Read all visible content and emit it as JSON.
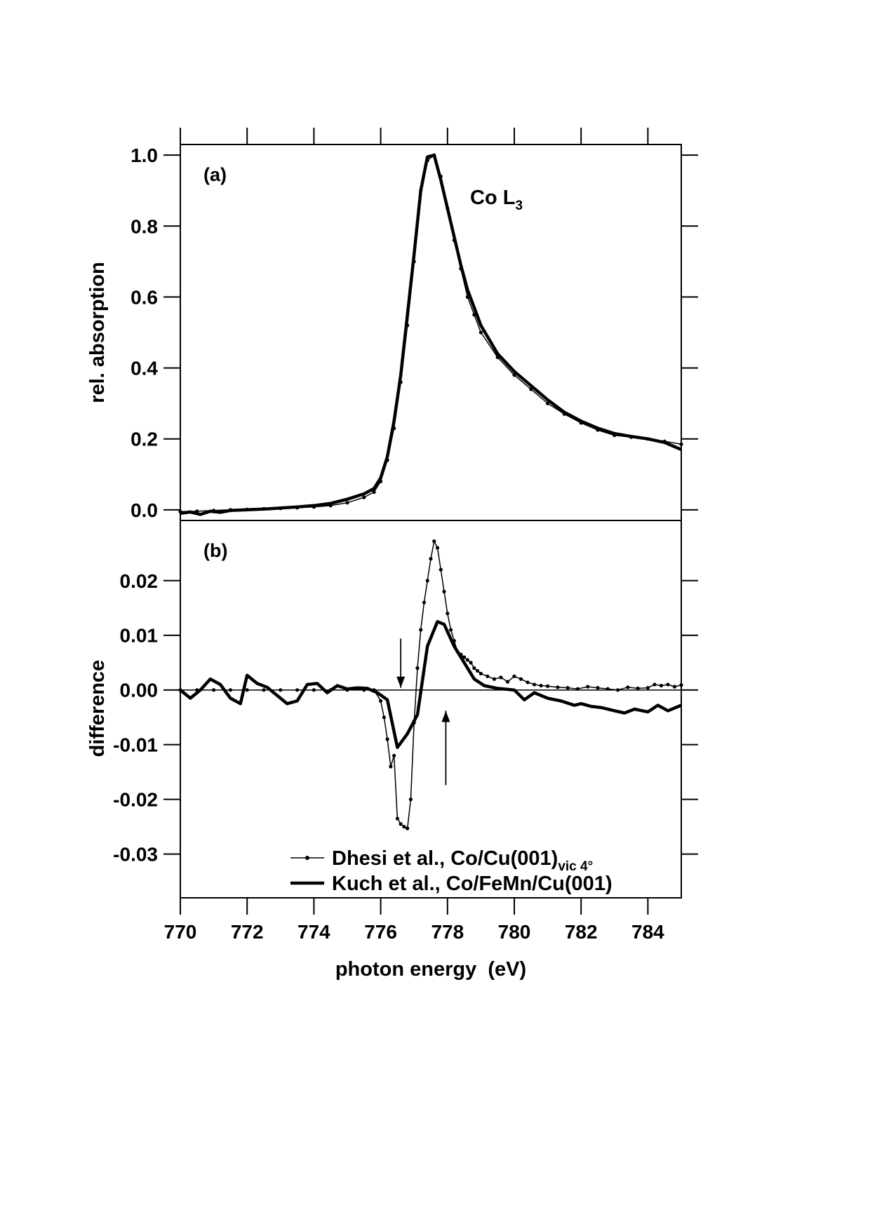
{
  "chart_data": [
    {
      "panel": "(a)",
      "type": "line",
      "annotation": "Co L",
      "annotation_sub": "3",
      "ylabel": "rel. absorption",
      "xlabel": "photon energy  (eV)",
      "xlim": [
        770,
        785
      ],
      "ylim": [
        -0.03,
        1.03
      ],
      "xticks": [
        "770",
        "772",
        "774",
        "776",
        "778",
        "780",
        "782",
        "784"
      ],
      "xtick_values": [
        770,
        772,
        774,
        776,
        778,
        780,
        782,
        784
      ],
      "yticks": [
        "0.0",
        "0.2",
        "0.4",
        "0.6",
        "0.8",
        "1.0"
      ],
      "ytick_values": [
        0,
        0.2,
        0.4,
        0.6,
        0.8,
        1.0
      ],
      "grid": false,
      "series": [
        {
          "name": "Dhesi et al., Co/Cu(001)",
          "style": "thin-dots",
          "x": [
            770,
            770.5,
            771,
            771.5,
            772,
            772.5,
            773,
            773.5,
            774,
            774.5,
            775,
            775.5,
            775.8,
            776,
            776.2,
            776.4,
            776.6,
            776.8,
            777,
            777.2,
            777.4,
            777.6,
            777.8,
            778,
            778.2,
            778.4,
            778.6,
            778.8,
            779,
            779.5,
            780,
            780.5,
            781,
            781.5,
            782,
            782.5,
            783,
            783.5,
            784,
            784.5,
            785
          ],
          "y": [
            -0.005,
            -0.004,
            -0.002,
            0,
            0.001,
            0.003,
            0.004,
            0.006,
            0.008,
            0.012,
            0.02,
            0.035,
            0.05,
            0.08,
            0.14,
            0.23,
            0.36,
            0.52,
            0.7,
            0.9,
            0.985,
            1.0,
            0.94,
            0.85,
            0.76,
            0.68,
            0.6,
            0.55,
            0.5,
            0.43,
            0.38,
            0.34,
            0.3,
            0.27,
            0.245,
            0.225,
            0.21,
            0.205,
            0.2,
            0.193,
            0.185
          ]
        },
        {
          "name": "Kuch et al., Co/FeMn/Cu(001)",
          "style": "thick",
          "x": [
            770,
            770.3,
            770.6,
            770.9,
            771.2,
            771.5,
            772,
            772.5,
            773,
            773.5,
            774,
            774.5,
            775,
            775.5,
            775.8,
            776,
            776.2,
            776.4,
            776.6,
            776.8,
            777,
            777.2,
            777.4,
            777.6,
            777.8,
            778,
            778.2,
            778.4,
            778.6,
            778.8,
            779,
            779.5,
            780,
            780.5,
            781,
            781.5,
            782,
            782.5,
            783,
            783.5,
            784,
            784.5,
            785
          ],
          "y": [
            -0.01,
            -0.006,
            -0.013,
            -0.004,
            -0.007,
            -0.002,
            0,
            0.002,
            0.005,
            0.008,
            0.012,
            0.018,
            0.03,
            0.045,
            0.06,
            0.09,
            0.15,
            0.25,
            0.38,
            0.55,
            0.72,
            0.9,
            0.995,
            1.0,
            0.93,
            0.85,
            0.77,
            0.69,
            0.62,
            0.57,
            0.52,
            0.44,
            0.39,
            0.35,
            0.31,
            0.275,
            0.25,
            0.23,
            0.215,
            0.207,
            0.2,
            0.19,
            0.17
          ]
        }
      ]
    },
    {
      "panel": "(b)",
      "type": "line",
      "ylabel": "difference",
      "xlabel": "photon energy  (eV)",
      "xlim": [
        770,
        785
      ],
      "ylim": [
        -0.038,
        0.031
      ],
      "xticks": [
        "770",
        "772",
        "774",
        "776",
        "778",
        "780",
        "782",
        "784"
      ],
      "xtick_values": [
        770,
        772,
        774,
        776,
        778,
        780,
        782,
        784
      ],
      "yticks": [
        "0.02",
        "0.01",
        "0.00",
        "-0.01",
        "-0.02",
        "-0.03"
      ],
      "ytick_values": [
        0.02,
        0.01,
        0,
        -0.01,
        -0.02,
        -0.03
      ],
      "zero_line": true,
      "grid": false,
      "arrows": [
        {
          "x": 776.6,
          "from": 0.0094,
          "to": 0.0004,
          "direction": "down"
        },
        {
          "x": 777.95,
          "from": -0.0174,
          "to": -0.0038,
          "direction": "up"
        }
      ],
      "legend": {
        "placement": "bottom-right",
        "entries": [
          {
            "label": "Dhesi et al., Co/Cu(001)",
            "sub": "vic 4°",
            "style": "thin-dots"
          },
          {
            "label": "Kuch et al., Co/FeMn/Cu(001)",
            "sub": "",
            "style": "thick"
          }
        ]
      },
      "series": [
        {
          "name": "Dhesi et al., Co/Cu(001) vic 4°",
          "style": "thin-dots",
          "x": [
            770,
            770.5,
            771,
            771.5,
            772,
            772.5,
            773,
            773.5,
            774,
            774.5,
            775,
            775.5,
            775.8,
            776,
            776.1,
            776.2,
            776.3,
            776.4,
            776.5,
            776.6,
            776.7,
            776.8,
            776.9,
            777,
            777.1,
            777.2,
            777.3,
            777.4,
            777.5,
            777.6,
            777.7,
            777.8,
            777.9,
            778,
            778.1,
            778.2,
            778.3,
            778.4,
            778.5,
            778.6,
            778.7,
            778.8,
            778.9,
            779,
            779.2,
            779.4,
            779.6,
            779.8,
            780,
            780.2,
            780.4,
            780.6,
            780.8,
            781,
            781.3,
            781.6,
            781.9,
            782.2,
            782.5,
            782.8,
            783.1,
            783.4,
            783.7,
            784,
            784.2,
            784.4,
            784.6,
            784.8,
            785
          ],
          "y": [
            0,
            0,
            0,
            0,
            0,
            0,
            0,
            0,
            0,
            0,
            0,
            0,
            0,
            -0.002,
            -0.005,
            -0.009,
            -0.014,
            -0.012,
            -0.0235,
            -0.0245,
            -0.025,
            -0.0253,
            -0.02,
            -0.006,
            0.004,
            0.011,
            0.016,
            0.02,
            0.024,
            0.0272,
            0.026,
            0.022,
            0.018,
            0.014,
            0.011,
            0.009,
            0.007,
            0.0065,
            0.006,
            0.0055,
            0.005,
            0.004,
            0.0035,
            0.003,
            0.0025,
            0.002,
            0.0023,
            0.0015,
            0.0025,
            0.002,
            0.0014,
            0.001,
            0.0008,
            0.0007,
            0.0005,
            0.0004,
            0.0002,
            0.0006,
            0.0004,
            0.0002,
            0,
            0.0005,
            0.0003,
            0.0004,
            0.001,
            0.0008,
            0.001,
            0.0006,
            0.0009
          ]
        },
        {
          "name": "Kuch et al., Co/FeMn/Cu(001)",
          "style": "thick",
          "x": [
            770,
            770.3,
            770.6,
            770.9,
            771.2,
            771.5,
            771.8,
            772,
            772.3,
            772.6,
            772.9,
            773.2,
            773.5,
            773.8,
            774.1,
            774.4,
            774.7,
            775,
            775.3,
            775.6,
            775.9,
            776.2,
            776.5,
            776.8,
            777.1,
            777.4,
            777.7,
            777.9,
            778.2,
            778.5,
            778.8,
            779.1,
            779.5,
            780,
            780.3,
            780.6,
            781,
            781.4,
            781.8,
            782,
            782.3,
            782.6,
            783,
            783.3,
            783.6,
            784,
            784.3,
            784.6,
            785
          ],
          "y": [
            0,
            -0.0015,
            0,
            0.002,
            0.001,
            -0.0015,
            -0.0025,
            0.0027,
            0.0012,
            0.0005,
            -0.001,
            -0.0025,
            -0.002,
            0.001,
            0.0012,
            -0.0005,
            0.0008,
            0.0002,
            0.0004,
            0.0003,
            -0.0005,
            -0.0018,
            -0.0105,
            -0.008,
            -0.0045,
            0.008,
            0.0125,
            0.012,
            0.008,
            0.005,
            0.002,
            0.0008,
            0.0003,
            0,
            -0.0018,
            -0.0005,
            -0.0015,
            -0.002,
            -0.0028,
            -0.0025,
            -0.003,
            -0.0032,
            -0.0038,
            -0.0042,
            -0.0035,
            -0.004,
            -0.0028,
            -0.0038,
            -0.0028
          ]
        }
      ]
    }
  ]
}
